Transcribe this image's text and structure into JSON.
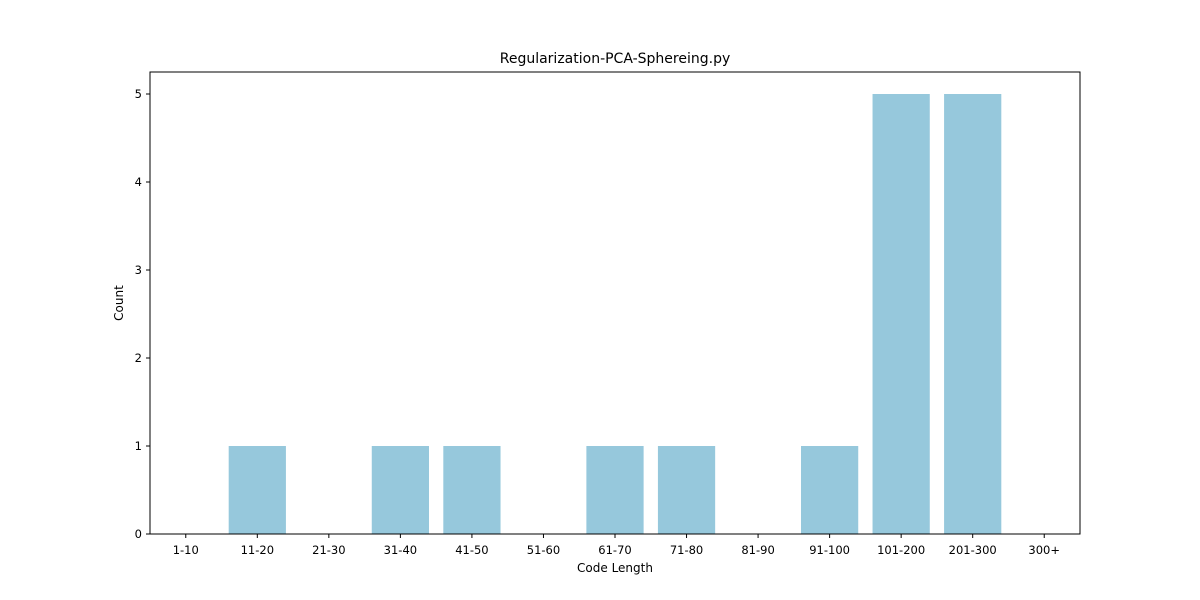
{
  "chart_data": {
    "type": "bar",
    "title": "Regularization-PCA-Sphereing.py",
    "xlabel": "Code Length",
    "ylabel": "Count",
    "categories": [
      "1-10",
      "11-20",
      "21-30",
      "31-40",
      "41-50",
      "51-60",
      "61-70",
      "71-80",
      "81-90",
      "91-100",
      "101-200",
      "201-300",
      "300+"
    ],
    "values": [
      0,
      1,
      0,
      1,
      1,
      0,
      1,
      1,
      0,
      1,
      5,
      5,
      0
    ],
    "ylim": [
      0,
      5.25
    ],
    "yticks": [
      0,
      1,
      2,
      3,
      4,
      5
    ],
    "bar_color": "#96c8dc",
    "grid": false,
    "legend": "none"
  }
}
